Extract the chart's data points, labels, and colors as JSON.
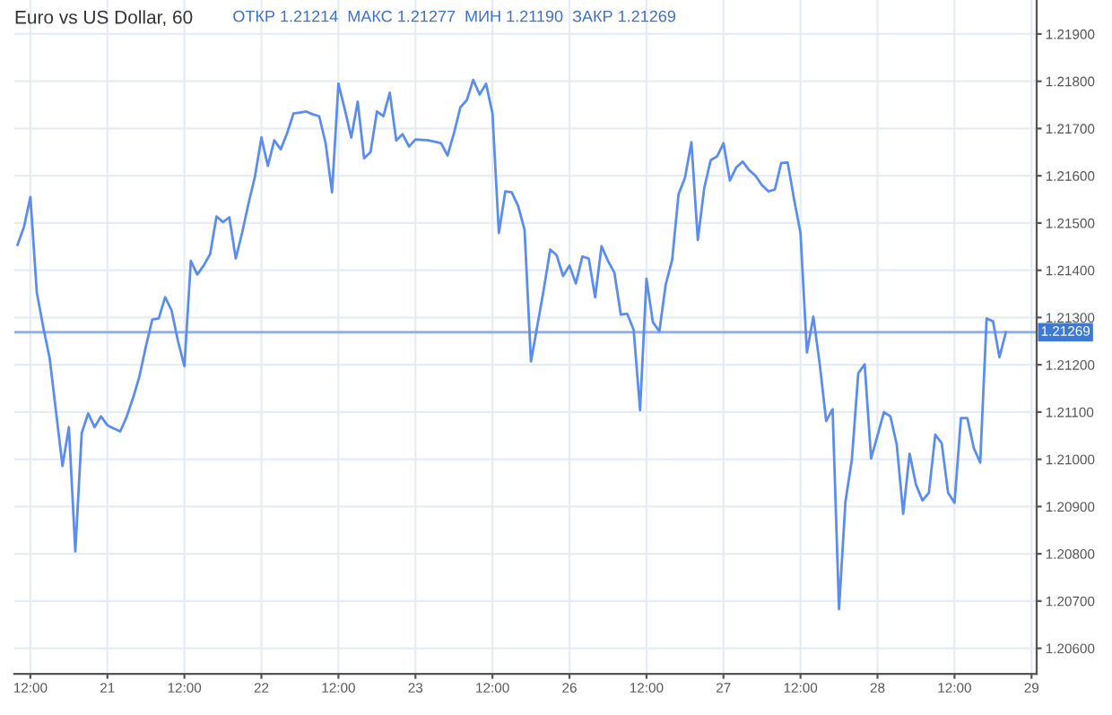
{
  "chart_data": {
    "type": "line",
    "title": "Euro vs US Dollar, 60",
    "subtitle": "ОТКР 1.21214  МАКС 1.21277  МИН 1.21190  ЗАКР 1.21269",
    "categories": [
      null,
      null,
      "12:00",
      null,
      null,
      null,
      null,
      null,
      null,
      null,
      null,
      null,
      null,
      null,
      "21",
      null,
      null,
      null,
      null,
      null,
      null,
      null,
      null,
      null,
      null,
      null,
      "12:00",
      null,
      null,
      null,
      null,
      null,
      null,
      null,
      null,
      null,
      null,
      null,
      "22",
      null,
      null,
      null,
      null,
      null,
      null,
      null,
      null,
      null,
      null,
      null,
      "12:00",
      null,
      null,
      null,
      null,
      null,
      null,
      null,
      null,
      null,
      null,
      null,
      "23",
      null,
      null,
      null,
      null,
      null,
      null,
      null,
      null,
      null,
      null,
      null,
      "12:00",
      null,
      null,
      null,
      null,
      null,
      null,
      null,
      null,
      null,
      null,
      null,
      "26",
      null,
      null,
      null,
      null,
      null,
      null,
      null,
      null,
      null,
      null,
      null,
      "12:00",
      null,
      null,
      null,
      null,
      null,
      null,
      null,
      null,
      null,
      null,
      null,
      "27",
      null,
      null,
      null,
      null,
      null,
      null,
      null,
      null,
      null,
      null,
      null,
      "12:00",
      null,
      null,
      null,
      null,
      null,
      null,
      null,
      null,
      null,
      null,
      null,
      "28",
      null,
      null,
      null,
      null,
      null,
      null,
      null,
      null,
      null,
      null,
      null,
      "12:00",
      null,
      null,
      null,
      null,
      null,
      null,
      null,
      null,
      null,
      null,
      null,
      "29"
    ],
    "series": [
      {
        "color": "#5b8def",
        "values": [
          1.21454,
          1.21492,
          1.21555,
          1.21353,
          1.2128,
          1.21214,
          1.211,
          1.20986,
          1.21068,
          1.20805,
          1.21056,
          1.21097,
          1.21068,
          1.21091,
          1.21072,
          1.21065,
          1.21059,
          1.2109,
          1.2113,
          1.21176,
          1.21239,
          1.21296,
          1.21298,
          1.21343,
          1.21315,
          1.2125,
          1.21197,
          1.2142,
          1.21391,
          1.2141,
          1.21434,
          1.21514,
          1.21502,
          1.21512,
          1.21425,
          1.2148,
          1.21542,
          1.21599,
          1.21681,
          1.21621,
          1.21675,
          1.21656,
          1.2169,
          1.21732,
          1.21734,
          1.21736,
          1.2173,
          1.21726,
          1.21669,
          1.21565,
          1.21795,
          1.2174,
          1.21681,
          1.21757,
          1.21637,
          1.2165,
          1.21736,
          1.21726,
          1.21776,
          1.21675,
          1.21688,
          1.21662,
          1.21677,
          1.21676,
          1.21675,
          1.21672,
          1.21669,
          1.21643,
          1.2169,
          1.21745,
          1.2176,
          1.21803,
          1.21772,
          1.21795,
          1.21732,
          1.21479,
          1.21567,
          1.21565,
          1.21536,
          1.21486,
          1.21207,
          1.21283,
          1.2136,
          1.21444,
          1.21432,
          1.21388,
          1.2141,
          1.21372,
          1.21429,
          1.21425,
          1.21343,
          1.21451,
          1.2142,
          1.21395,
          1.21306,
          1.21308,
          1.21274,
          1.21104,
          1.21382,
          1.2129,
          1.21271,
          1.2137,
          1.21422,
          1.21561,
          1.21596,
          1.21671,
          1.21464,
          1.21574,
          1.21633,
          1.21641,
          1.21669,
          1.2159,
          1.21618,
          1.2163,
          1.21612,
          1.216,
          1.2158,
          1.21567,
          1.21571,
          1.21627,
          1.21628,
          1.2155,
          1.21479,
          1.21226,
          1.21302,
          1.21201,
          1.21081,
          1.21106,
          1.20683,
          1.2091,
          1.20999,
          1.21182,
          1.21201,
          1.21002,
          1.2105,
          1.211,
          1.21091,
          1.21031,
          1.20885,
          1.21012,
          1.20946,
          1.20913,
          1.20929,
          1.21052,
          1.21034,
          1.20929,
          1.20908,
          1.21087,
          1.21087,
          1.21024,
          1.20993,
          1.21298,
          1.21292,
          1.21216,
          1.21269,
          null,
          null,
          null,
          null
        ]
      }
    ],
    "ylim": [
      1.20546,
      1.21972
    ],
    "yticks": [
      {
        "value": 1.206,
        "label": "1.20600"
      },
      {
        "value": 1.207,
        "label": "1.20700"
      },
      {
        "value": 1.208,
        "label": "1.20800"
      },
      {
        "value": 1.209,
        "label": "1.20900"
      },
      {
        "value": 1.21,
        "label": "1.21000"
      },
      {
        "value": 1.211,
        "label": "1.21100"
      },
      {
        "value": 1.212,
        "label": "1.21200"
      },
      {
        "value": 1.213,
        "label": "1.21300"
      },
      {
        "value": 1.214,
        "label": "1.21400"
      },
      {
        "value": 1.215,
        "label": "1.21500"
      },
      {
        "value": 1.216,
        "label": "1.21600"
      },
      {
        "value": 1.217,
        "label": "1.21700"
      },
      {
        "value": 1.218,
        "label": "1.21800"
      },
      {
        "value": 1.219,
        "label": "1.21900"
      }
    ],
    "ref_lines": [
      {
        "axis": "y",
        "value": 1.21269,
        "label": "1.21269",
        "color": "#8fb0f0"
      }
    ],
    "grid": true,
    "legend": false,
    "marker": "none",
    "line_style": "solid"
  }
}
